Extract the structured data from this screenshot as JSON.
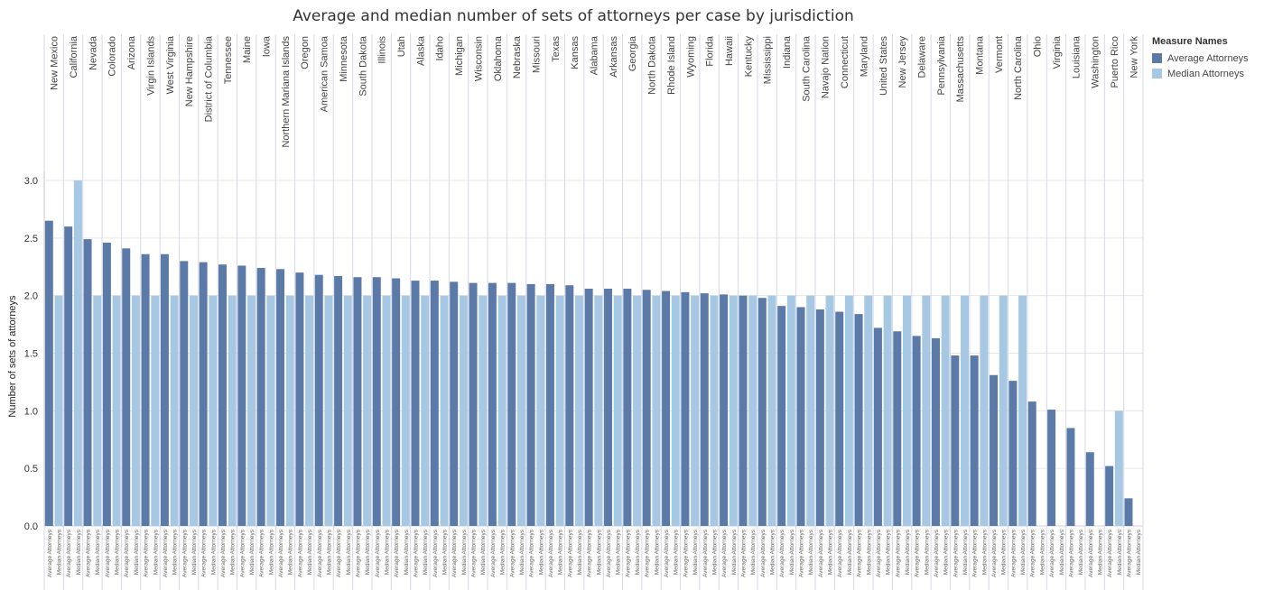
{
  "chart_data": {
    "type": "bar",
    "title": "Average and median number of sets of attorneys per case by jurisdiction",
    "ylabel": "Number of sets of attorneys",
    "ylim": [
      0,
      3.0
    ],
    "yticks": [
      "0.0",
      "0.5",
      "1.0",
      "1.5",
      "2.0",
      "2.5",
      "3.0"
    ],
    "grid": true,
    "legend_position": "top-right",
    "legend_title": "Measure Names",
    "sub_labels": [
      "Average Attorneys",
      "Median Attorneys"
    ],
    "categories": [
      "New Mexico",
      "California",
      "Nevada",
      "Colorado",
      "Arizona",
      "Virgin Islands",
      "West Virginia",
      "New Hampshire",
      "District of Columbia",
      "Tennessee",
      "Maine",
      "Iowa",
      "Northern Mariana Islands",
      "Oregon",
      "American Samoa",
      "Minnesota",
      "South Dakota",
      "Illinois",
      "Utah",
      "Alaska",
      "Idaho",
      "Michigan",
      "Wisconsin",
      "Oklahoma",
      "Nebraska",
      "Missouri",
      "Texas",
      "Kansas",
      "Alabama",
      "Arkansas",
      "Georgia",
      "North Dakota",
      "Rhode Island",
      "Wyoming",
      "Florida",
      "Hawaii",
      "Kentucky",
      "Mississippi",
      "Indiana",
      "South Carolina",
      "Navajo Nation",
      "Connecticut",
      "Maryland",
      "United States",
      "New Jersey",
      "Delaware",
      "Pennsylvania",
      "Massachusetts",
      "Montana",
      "Vermont",
      "North Carolina",
      "Ohio",
      "Virginia",
      "Louisiana",
      "Washington",
      "Puerto Rico",
      "New York"
    ],
    "series": [
      {
        "name": "Average Attorneys",
        "color": "#5b7aa8",
        "values": [
          2.65,
          2.6,
          2.49,
          2.46,
          2.41,
          2.36,
          2.36,
          2.3,
          2.29,
          2.27,
          2.26,
          2.24,
          2.23,
          2.2,
          2.18,
          2.17,
          2.16,
          2.16,
          2.15,
          2.13,
          2.13,
          2.12,
          2.11,
          2.11,
          2.11,
          2.1,
          2.1,
          2.09,
          2.06,
          2.06,
          2.06,
          2.05,
          2.04,
          2.03,
          2.02,
          2.01,
          2.0,
          1.98,
          1.91,
          1.9,
          1.88,
          1.86,
          1.84,
          1.72,
          1.69,
          1.65,
          1.63,
          1.48,
          1.48,
          1.31,
          1.26,
          1.08,
          1.01,
          0.85,
          0.64,
          0.52,
          0.24
        ]
      },
      {
        "name": "Median Attorneys",
        "color": "#a7c8e2",
        "values": [
          2,
          3,
          2,
          2,
          2,
          2,
          2,
          2,
          2,
          2,
          2,
          2,
          2,
          2,
          2,
          2,
          2,
          2,
          2,
          2,
          2,
          2,
          2,
          2,
          2,
          2,
          2,
          2,
          2,
          2,
          2,
          2,
          2,
          2,
          2,
          2,
          2,
          2,
          2,
          2,
          2,
          2,
          2,
          2,
          2,
          2,
          2,
          2,
          2,
          2,
          2,
          0,
          0,
          0,
          0,
          1,
          0
        ]
      }
    ]
  }
}
